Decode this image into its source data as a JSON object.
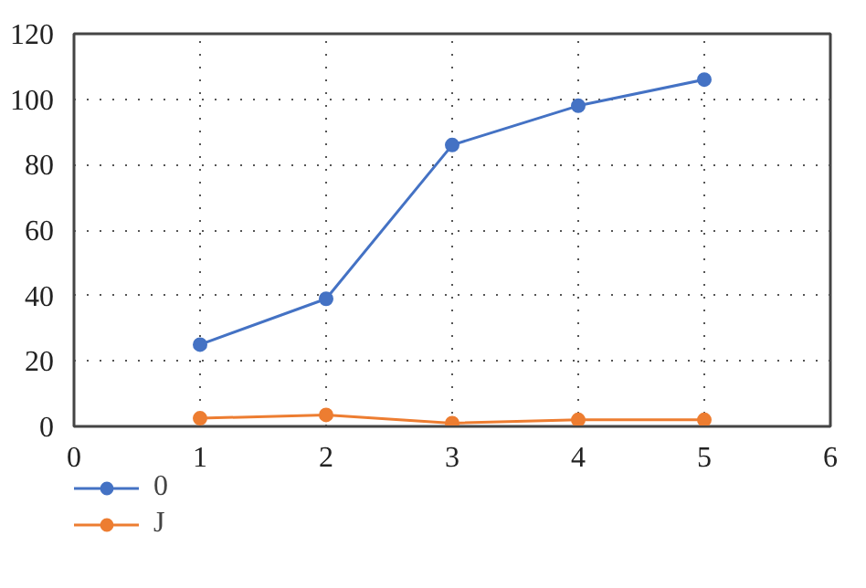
{
  "chart_data": {
    "type": "line",
    "x": [
      1,
      2,
      3,
      4,
      5
    ],
    "series": [
      {
        "name": "0",
        "color": "#4472c4",
        "values": [
          25,
          39,
          86,
          98,
          106
        ]
      },
      {
        "name": "J",
        "color": "#ed7d31",
        "values": [
          2.5,
          3.5,
          1,
          2,
          2
        ]
      }
    ],
    "xlim": [
      0,
      6
    ],
    "ylim": [
      0,
      120
    ],
    "xticks": [
      0,
      1,
      2,
      3,
      4,
      5,
      6
    ],
    "yticks": [
      0,
      20,
      40,
      60,
      80,
      100,
      120
    ],
    "grid": true,
    "legend": "bottom left",
    "marker": "circle",
    "line_style": "solid"
  }
}
